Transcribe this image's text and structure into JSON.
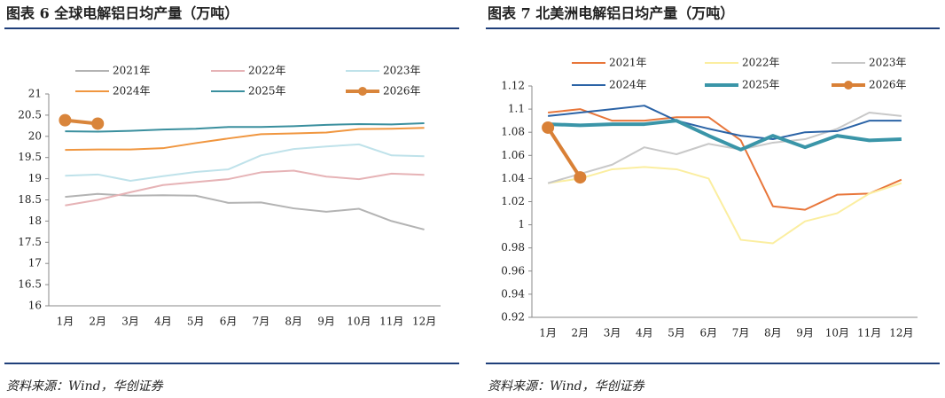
{
  "chart_data": [
    {
      "type": "line",
      "title": "图表 6  全球电解铝日均产量（万吨）",
      "source": "资料来源：Wind，华创证券",
      "categories": [
        "1月",
        "2月",
        "3月",
        "4月",
        "5月",
        "6月",
        "7月",
        "8月",
        "9月",
        "10月",
        "11月",
        "12月"
      ],
      "ylim": [
        16,
        21
      ],
      "yticks": [
        16,
        16.5,
        17,
        17.5,
        18,
        18.5,
        19,
        19.5,
        20,
        20.5,
        21
      ],
      "series": [
        {
          "name": "2021年",
          "color": "#b3b3b3",
          "line_width": 2,
          "values": [
            18.57,
            18.64,
            18.6,
            18.61,
            18.6,
            18.43,
            18.44,
            18.3,
            18.22,
            18.29,
            18.0,
            17.8
          ]
        },
        {
          "name": "2022年",
          "color": "#e6b3b6",
          "line_width": 2,
          "values": [
            18.37,
            18.5,
            18.68,
            18.85,
            18.92,
            18.99,
            19.15,
            19.19,
            19.05,
            18.99,
            19.12,
            19.09
          ]
        },
        {
          "name": "2023年",
          "color": "#bfe2ea",
          "line_width": 2,
          "values": [
            19.07,
            19.1,
            18.95,
            19.06,
            19.16,
            19.22,
            19.55,
            19.7,
            19.76,
            19.81,
            19.55,
            19.53
          ]
        },
        {
          "name": "2024年",
          "color": "#f0963f",
          "line_width": 2,
          "values": [
            19.68,
            19.69,
            19.69,
            19.72,
            19.84,
            19.95,
            20.05,
            20.07,
            20.09,
            20.17,
            20.18,
            20.2
          ]
        },
        {
          "name": "2025年",
          "color": "#3a8f9e",
          "line_width": 2,
          "values": [
            20.12,
            20.11,
            20.13,
            20.16,
            20.18,
            20.22,
            20.22,
            20.24,
            20.27,
            20.29,
            20.28,
            20.31
          ]
        },
        {
          "name": "2026年",
          "color": "#d9853b",
          "line_width": 4,
          "marker": true,
          "values": [
            20.38,
            20.3,
            null,
            null,
            null,
            null,
            null,
            null,
            null,
            null,
            null,
            null
          ]
        }
      ]
    },
    {
      "type": "line",
      "title": "图表 7  北美洲电解铝日均产量（万吨）",
      "source": "资料来源：Wind，华创证券",
      "categories": [
        "1月",
        "2月",
        "3月",
        "4月",
        "5月",
        "6月",
        "7月",
        "8月",
        "9月",
        "10月",
        "11月",
        "12月"
      ],
      "ylim": [
        0.92,
        1.12
      ],
      "yticks": [
        0.92,
        0.94,
        0.96,
        0.98,
        1,
        1.02,
        1.04,
        1.06,
        1.08,
        1.1,
        1.12
      ],
      "series": [
        {
          "name": "2021年",
          "color": "#e8763a",
          "line_width": 2,
          "values": [
            1.097,
            1.1,
            1.09,
            1.09,
            1.093,
            1.093,
            1.073,
            1.016,
            1.013,
            1.026,
            1.027,
            1.039
          ]
        },
        {
          "name": "2022年",
          "color": "#fbeea0",
          "line_width": 2,
          "values": [
            1.036,
            1.04,
            1.048,
            1.05,
            1.048,
            1.04,
            0.987,
            0.984,
            1.003,
            1.01,
            1.027,
            1.036
          ]
        },
        {
          "name": "2023年",
          "color": "#c8c8c8",
          "line_width": 2,
          "values": [
            1.036,
            1.044,
            1.052,
            1.067,
            1.061,
            1.07,
            1.065,
            1.071,
            1.074,
            1.083,
            1.097,
            1.094
          ]
        },
        {
          "name": "2024年",
          "color": "#2b63a6",
          "line_width": 2,
          "values": [
            1.094,
            1.097,
            1.1,
            1.103,
            1.09,
            1.083,
            1.077,
            1.074,
            1.08,
            1.081,
            1.09,
            1.09
          ]
        },
        {
          "name": "2025年",
          "color": "#3a95a8",
          "line_width": 4,
          "values": [
            1.087,
            1.086,
            1.087,
            1.087,
            1.09,
            1.077,
            1.065,
            1.077,
            1.067,
            1.077,
            1.073,
            1.074
          ]
        },
        {
          "name": "2026年",
          "color": "#d98036",
          "line_width": 4,
          "marker": true,
          "values": [
            1.084,
            1.041,
            null,
            null,
            null,
            null,
            null,
            null,
            null,
            null,
            null,
            null
          ]
        }
      ]
    }
  ]
}
